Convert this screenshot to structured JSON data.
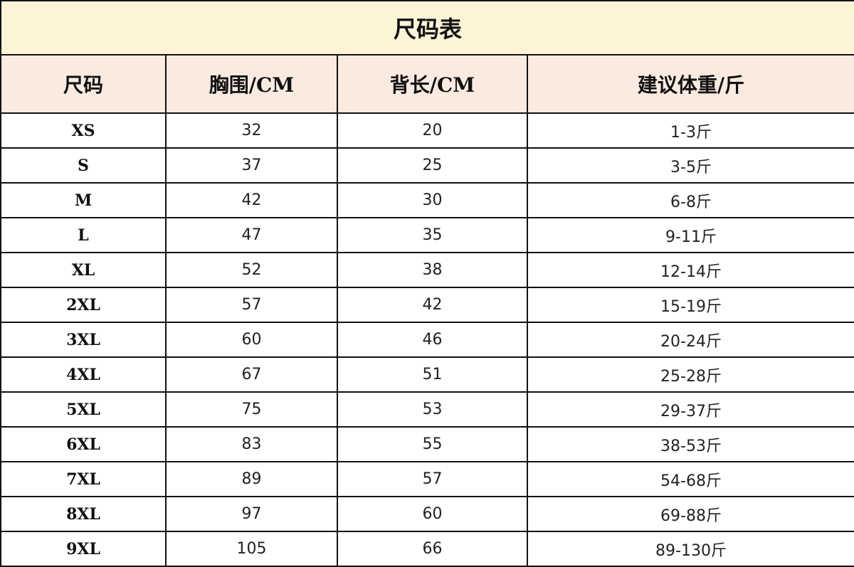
{
  "title": "尺码表",
  "colors": {
    "title_bg": "#fdf4d6",
    "header_bg": "#fbeadf",
    "border": "#111111"
  },
  "headers": [
    "尺码",
    "胸围/CM",
    "背长/CM",
    "建议体重/斤"
  ],
  "rows": [
    [
      "XS",
      "32",
      "20",
      "1-3斤"
    ],
    [
      "S",
      "37",
      "25",
      "3-5斤"
    ],
    [
      "M",
      "42",
      "30",
      "6-8斤"
    ],
    [
      "L",
      "47",
      "35",
      "9-11斤"
    ],
    [
      "XL",
      "52",
      "38",
      "12-14斤"
    ],
    [
      "2XL",
      "57",
      "42",
      "15-19斤"
    ],
    [
      "3XL",
      "60",
      "46",
      "20-24斤"
    ],
    [
      "4XL",
      "67",
      "51",
      "25-28斤"
    ],
    [
      "5XL",
      "75",
      "53",
      "29-37斤"
    ],
    [
      "6XL",
      "83",
      "55",
      "38-53斤"
    ],
    [
      "7XL",
      "89",
      "57",
      "54-68斤"
    ],
    [
      "8XL",
      "97",
      "60",
      "69-88斤"
    ],
    [
      "9XL",
      "105",
      "66",
      "89-130斤"
    ]
  ]
}
